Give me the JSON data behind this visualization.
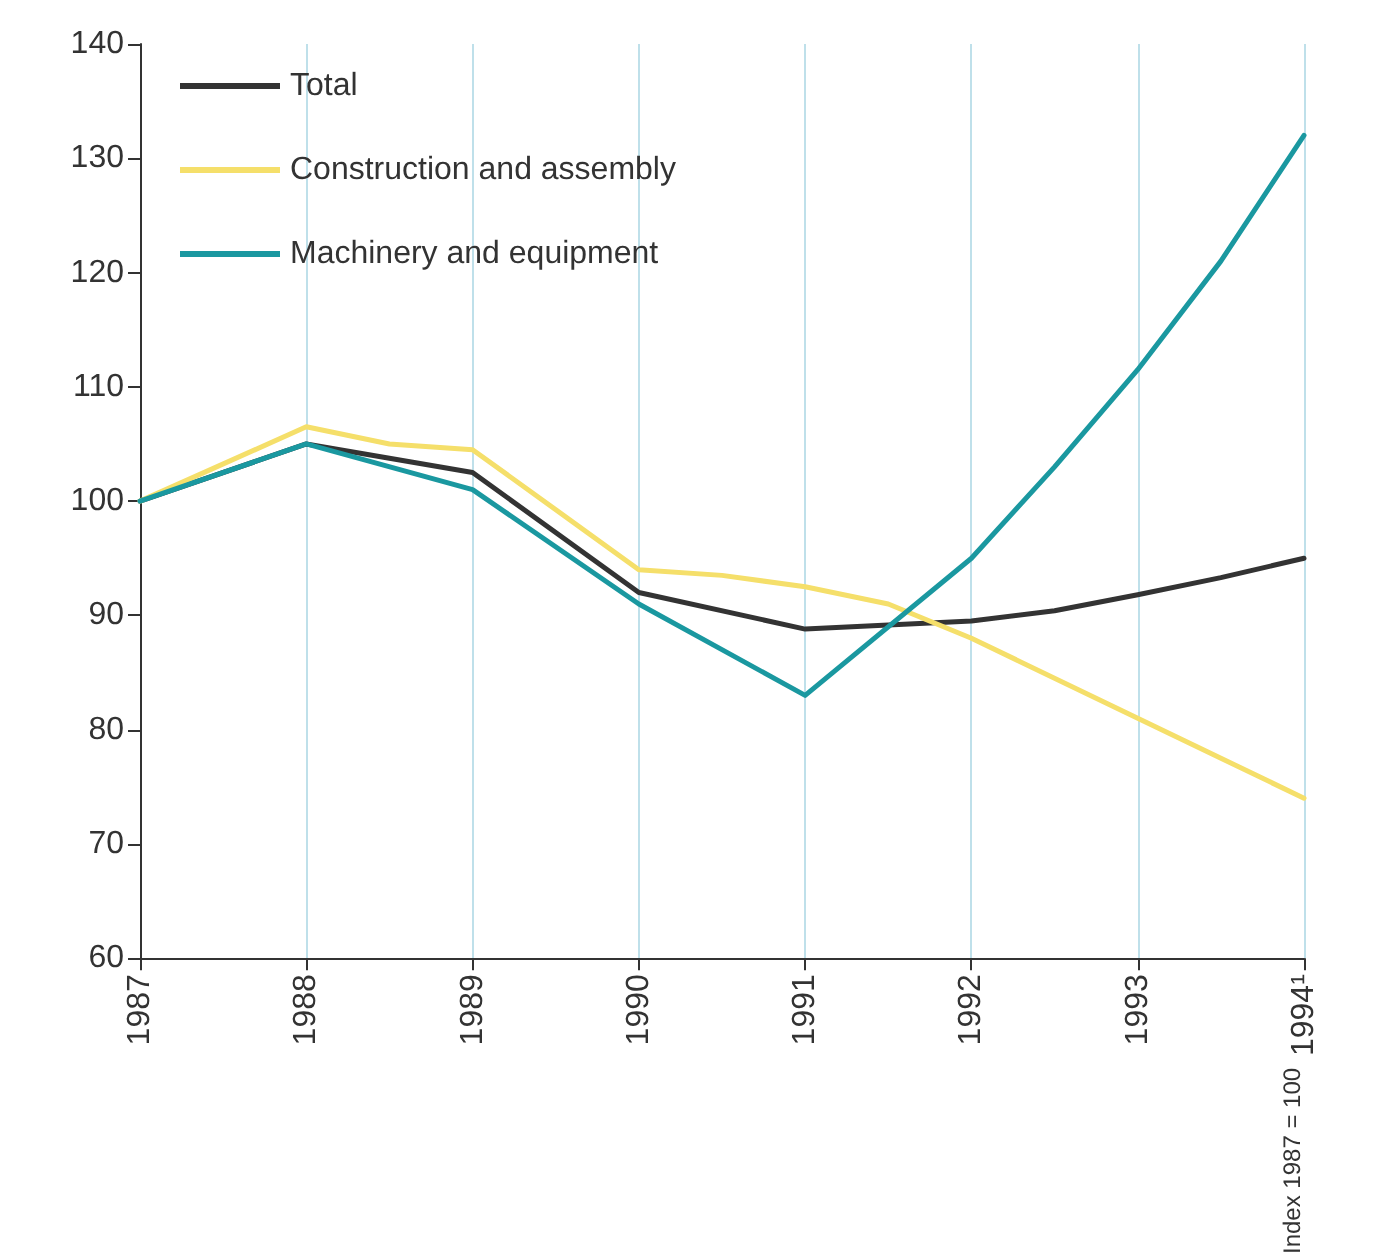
{
  "chart_data": {
    "type": "line",
    "ylabel": "Index 1987 = 100",
    "xlim": [
      1987,
      1994
    ],
    "xticks": [
      1987,
      1988,
      1989,
      1990,
      1991,
      1992,
      1993,
      {
        "value": 1994,
        "label": "1994¹"
      }
    ],
    "ylim": [
      60,
      140
    ],
    "yticks": [
      60,
      70,
      80,
      90,
      100,
      110,
      120,
      130,
      140
    ],
    "grid": "x",
    "legend": "top left",
    "marker": "none",
    "line_style": "solid",
    "series": [
      {
        "name": "Total",
        "color": "#333333",
        "x": [
          1987,
          1988,
          1989,
          1990,
          1991,
          1992,
          1992.5,
          1993,
          1993.5,
          1994
        ],
        "values": [
          100,
          105,
          102.5,
          92,
          88.8,
          89.5,
          90.4,
          91.8,
          93.3,
          95
        ]
      },
      {
        "name": "Construction and assembly",
        "color": "#f5df6a",
        "x": [
          1987,
          1988,
          1988.5,
          1989,
          1990,
          1990.5,
          1991,
          1991.5,
          1992,
          1993,
          1994
        ],
        "values": [
          100,
          106.5,
          105,
          104.5,
          94,
          93.5,
          92.5,
          91,
          88,
          81,
          74
        ]
      },
      {
        "name": "Machinery and equipment",
        "color": "#1a98a0",
        "x": [
          1987,
          1988,
          1989,
          1990,
          1991,
          1992,
          1992.5,
          1993,
          1993.5,
          1994
        ],
        "values": [
          100,
          105,
          101,
          91,
          83,
          95,
          103,
          111.5,
          121,
          132
        ]
      }
    ]
  }
}
